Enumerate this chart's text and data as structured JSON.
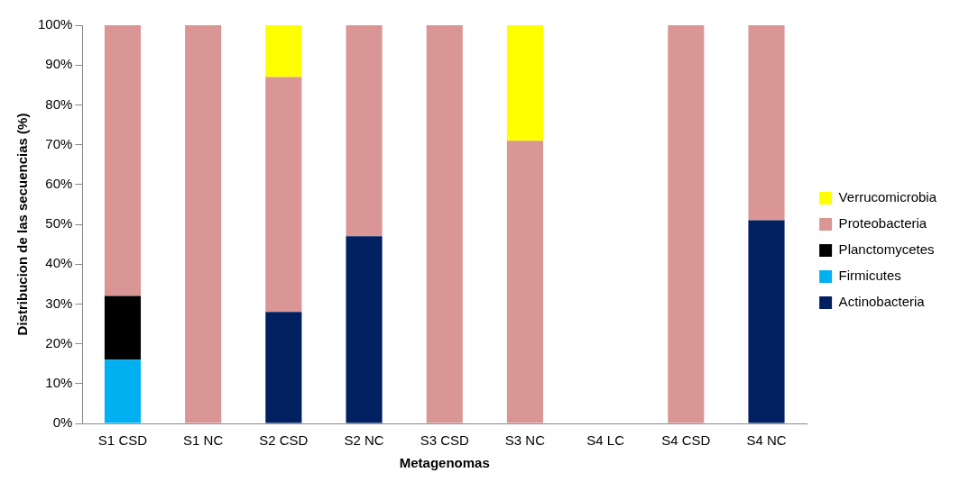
{
  "chart_data": {
    "type": "bar",
    "stacked": true,
    "xlabel": "Metagenomas",
    "ylabel": "Distribucion de las secuencias (%)",
    "categories": [
      "S1 CSD",
      "S1 NC",
      "S2 CSD",
      "S2 NC",
      "S3 CSD",
      "S3 NC",
      "S4 LC",
      "S4 CSD",
      "S4 NC"
    ],
    "series": [
      {
        "name": "Actinobacteria",
        "color": "#002060",
        "values": [
          0,
          0,
          28,
          47,
          0,
          0,
          null,
          0,
          51
        ]
      },
      {
        "name": "Firmicutes",
        "color": "#00b0f0",
        "values": [
          16,
          0,
          0,
          0,
          0,
          0,
          null,
          0,
          0
        ]
      },
      {
        "name": "Planctomycetes",
        "color": "#000000",
        "values": [
          16,
          0,
          0,
          0,
          0,
          0,
          null,
          0,
          0
        ]
      },
      {
        "name": "Proteobacteria",
        "color": "#d99694",
        "values": [
          68,
          100,
          59,
          53,
          100,
          71,
          null,
          100,
          49
        ]
      },
      {
        "name": "Verrucomicrobia",
        "color": "#ffff00",
        "values": [
          0,
          0,
          13,
          0,
          0,
          29,
          null,
          0,
          0
        ]
      }
    ],
    "ylim": [
      0,
      100
    ],
    "yticks": [
      {
        "value": 0,
        "label": "0%"
      },
      {
        "value": 10,
        "label": "10%"
      },
      {
        "value": 20,
        "label": "20%"
      },
      {
        "value": 30,
        "label": "30%"
      },
      {
        "value": 40,
        "label": "40%"
      },
      {
        "value": 50,
        "label": "50%"
      },
      {
        "value": 60,
        "label": "60%"
      },
      {
        "value": 70,
        "label": "70%"
      },
      {
        "value": 80,
        "label": "80%"
      },
      {
        "value": 90,
        "label": "90%"
      },
      {
        "value": 100,
        "label": "100%"
      }
    ],
    "grid": false,
    "legend": "right"
  }
}
